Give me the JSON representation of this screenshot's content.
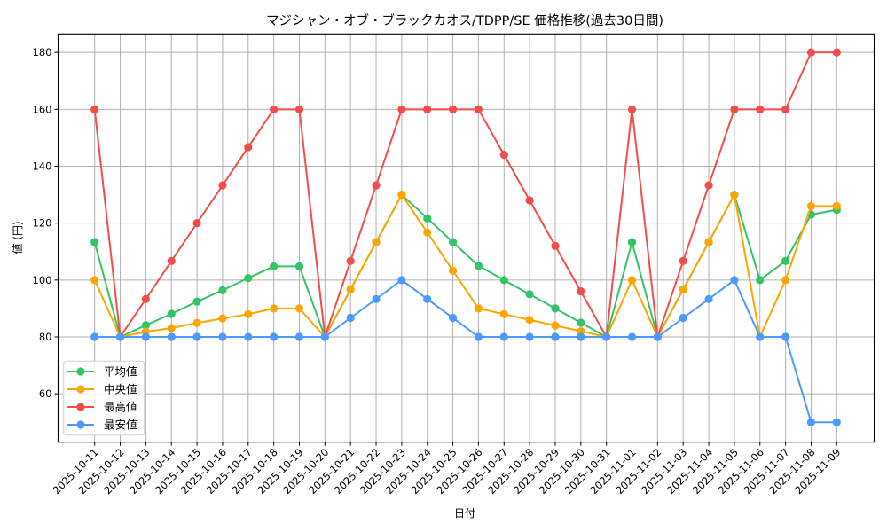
{
  "chart_data": {
    "type": "line",
    "title": "マジシャン・オブ・ブラックカオス/TDPP/SE 価格推移(過去30日間)",
    "xlabel": "日付",
    "ylabel": "値 (円)",
    "ylim": [
      43,
      186.5
    ],
    "yticks": [
      60,
      80,
      100,
      120,
      140,
      160,
      180
    ],
    "grid": true,
    "legend_position": "lower left",
    "categories": [
      "2025-10-11",
      "2025-10-12",
      "2025-10-13",
      "2025-10-14",
      "2025-10-15",
      "2025-10-16",
      "2025-10-17",
      "2025-10-18",
      "2025-10-19",
      "2025-10-20",
      "2025-10-21",
      "2025-10-22",
      "2025-10-23",
      "2025-10-24",
      "2025-10-25",
      "2025-10-26",
      "2025-10-27",
      "2025-10-28",
      "2025-10-29",
      "2025-10-30",
      "2025-10-31",
      "2025-11-01",
      "2025-11-02",
      "2025-11-03",
      "2025-11-04",
      "2025-11-05",
      "2025-11-06",
      "2025-11-07",
      "2025-11-08",
      "2025-11-09"
    ],
    "series": [
      {
        "name": "平均値",
        "color": "#33c466",
        "values": [
          113.3,
          80,
          84.1,
          88.1,
          92.4,
          96.4,
          100.7,
          104.8,
          104.8,
          80,
          96.7,
          113.3,
          130,
          121.7,
          113.3,
          105,
          100,
          95,
          90,
          85,
          80,
          113.3,
          80,
          96.7,
          113.3,
          130,
          100,
          106.7,
          123,
          124.7
        ]
      },
      {
        "name": "中央値",
        "color": "#ffa500",
        "values": [
          100,
          80,
          81.8,
          83.1,
          84.9,
          86.5,
          88,
          90,
          90,
          80,
          96.7,
          113.3,
          130,
          116.7,
          103.3,
          90,
          88,
          86,
          84,
          82,
          80,
          100,
          80,
          96.7,
          113.3,
          130,
          80,
          100,
          126,
          126
        ]
      },
      {
        "name": "最高値",
        "color": "#f44b4b",
        "values": [
          160,
          80,
          93.3,
          106.7,
          120,
          133.3,
          146.7,
          160,
          160,
          80,
          106.7,
          133.3,
          160,
          160,
          160,
          160,
          144,
          128,
          112,
          96,
          80,
          160,
          80,
          106.7,
          133.3,
          160,
          160,
          160,
          180,
          180
        ]
      },
      {
        "name": "最安値",
        "color": "#4c9aff",
        "values": [
          80,
          80,
          80,
          80,
          80,
          80,
          80,
          80,
          80,
          80,
          86.7,
          93.3,
          100,
          93.3,
          86.7,
          80,
          80,
          80,
          80,
          80,
          80,
          80,
          80,
          86.7,
          93.3,
          100,
          80,
          80,
          50,
          50
        ]
      }
    ]
  }
}
